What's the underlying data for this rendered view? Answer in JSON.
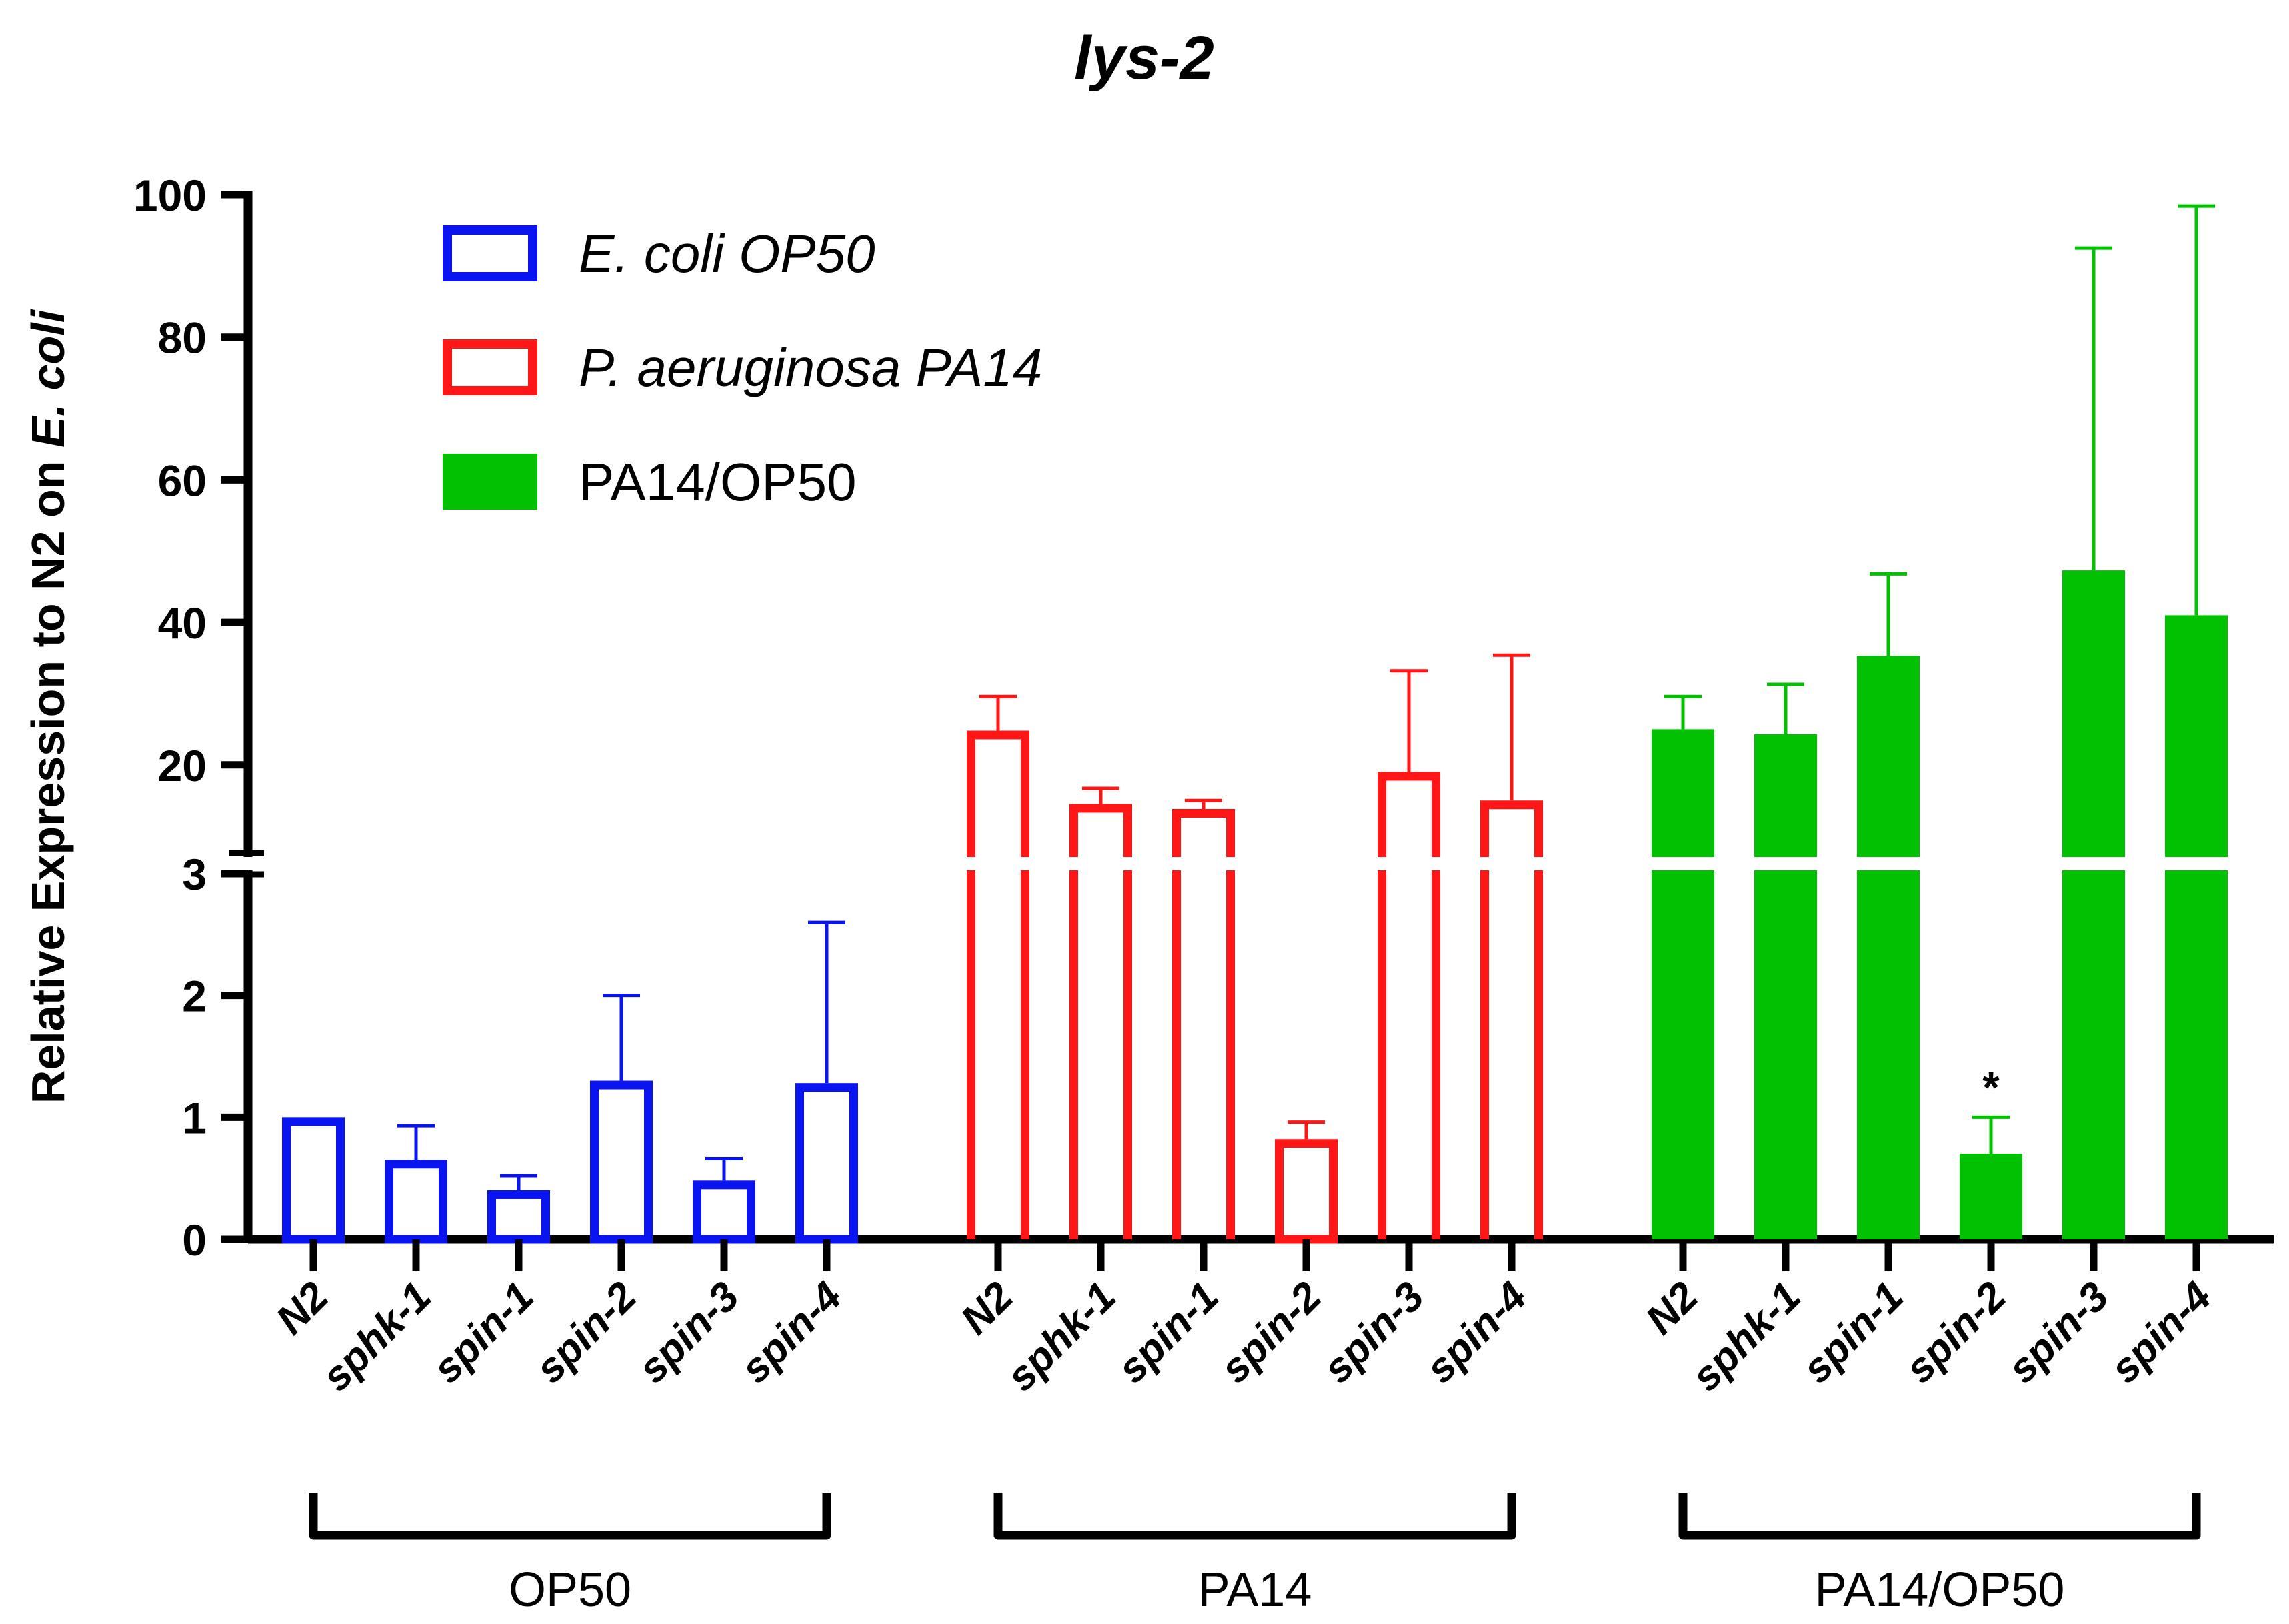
{
  "chart_data": {
    "type": "bar",
    "title": "lys-2",
    "ylabel": "Relative Expression to N2 on",
    "ylabel_italic": "E. coli",
    "xlabel": "",
    "y_axis": {
      "break": true,
      "lower_range": [
        0,
        3
      ],
      "upper_range": [
        8,
        100
      ],
      "ticks": [
        "0",
        "1",
        "2",
        "3",
        "20",
        "40",
        "60",
        "80",
        "100"
      ]
    },
    "categories": [
      "N2",
      "sphk-1",
      "spin-1",
      "spin-2",
      "spin-3",
      "spin-4"
    ],
    "groups": [
      "OP50",
      "PA14",
      "PA14/OP50"
    ],
    "series": [
      {
        "name": "E. coli OP50",
        "group": "OP50",
        "style": "hollow",
        "color": "#0a14f0",
        "values": [
          1.0,
          0.65,
          0.4,
          1.3,
          0.48,
          1.28
        ],
        "errors": [
          0.0,
          0.28,
          0.12,
          0.7,
          0.18,
          1.32
        ]
      },
      {
        "name": "P. aeruginosa PA14",
        "group": "PA14",
        "style": "hollow",
        "color": "#ff1616",
        "values": [
          24.8,
          14.5,
          13.8,
          0.82,
          19.0,
          15.0
        ],
        "errors": [
          4.8,
          2.2,
          1.2,
          0.14,
          14.2,
          20.4
        ]
      },
      {
        "name": "PA14/OP50",
        "group": "PA14/OP50",
        "style": "filled",
        "color": "#02c102",
        "values": [
          25.0,
          24.3,
          35.3,
          0.7,
          47.3,
          41.0
        ],
        "errors": [
          4.6,
          7.0,
          11.5,
          0.3,
          45.2,
          57.4
        ]
      }
    ],
    "annotations": [
      {
        "series": "PA14/OP50",
        "category": "spin-2",
        "text": "*"
      }
    ],
    "legend": {
      "placement": "top-left",
      "entries": [
        {
          "label": "E. coli OP50",
          "italic": true,
          "style": "hollow",
          "color": "#0a14f0"
        },
        {
          "label": "P. aeruginosa PA14",
          "italic": true,
          "style": "hollow",
          "color": "#ff1616"
        },
        {
          "label": "PA14/OP50",
          "italic": false,
          "style": "filled",
          "color": "#02c102"
        }
      ]
    }
  }
}
